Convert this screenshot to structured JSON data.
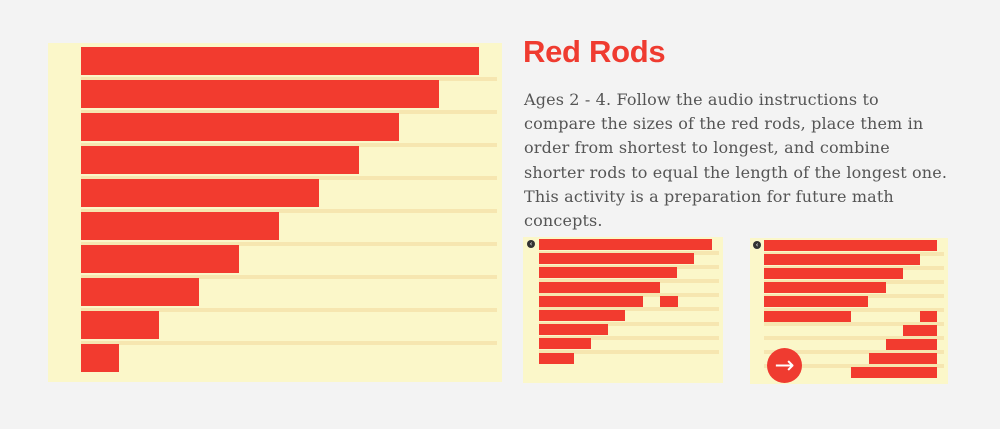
{
  "activity": {
    "title": "Red Rods",
    "description": "Ages 2 - 4. Follow the audio instructions to compare the sizes of the red rods, place them in order from shortest to longest, and combine shorter rods to equal the length of the longest one. This activity is a preparation for future math concepts."
  },
  "colors": {
    "accent": "#ef3b30",
    "rod": "#f23b2f",
    "panel": "#fbf7c9",
    "background": "#f3f3f3"
  },
  "screenshots": [
    {
      "back_icon": "back-arrow-icon"
    },
    {
      "back_icon": "back-arrow-icon",
      "next_icon": "right-arrow-icon"
    }
  ]
}
